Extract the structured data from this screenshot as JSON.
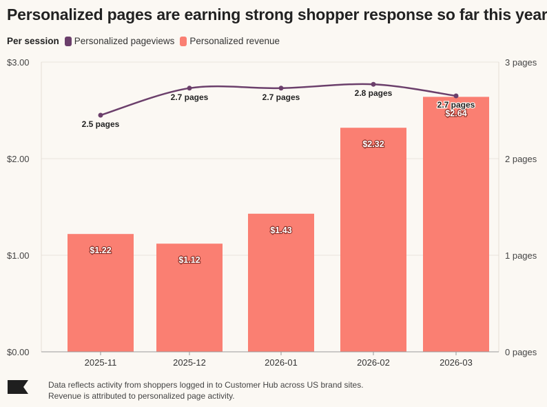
{
  "title": "Personalized pages are earning strong shopper response so far this year",
  "legend": {
    "title": "Per session",
    "items": [
      {
        "label": "Personalized pageviews",
        "color": "#6b3f6b"
      },
      {
        "label": "Personalized revenue",
        "color": "#fa7f72"
      }
    ]
  },
  "footer": {
    "line1": "Data reflects activity from shoppers logged in to Customer Hub across US brand sites.",
    "line2": "Revenue is attributed to personalized page activity."
  },
  "chart_data": {
    "type": "bar",
    "title": "Personalized pages are earning strong shopper response so far this year",
    "categories": [
      "2025-11",
      "2025-12",
      "2026-01",
      "2026-02",
      "2026-03"
    ],
    "series": [
      {
        "name": "Personalized revenue",
        "type": "bar",
        "axis": "left",
        "values": [
          1.22,
          1.12,
          1.43,
          2.32,
          2.64
        ],
        "labels": [
          "$1.22",
          "$1.12",
          "$1.43",
          "$2.32",
          "$2.64"
        ],
        "color": "#fa7f72"
      },
      {
        "name": "Personalized pageviews",
        "type": "line",
        "axis": "right",
        "values": [
          2.45,
          2.73,
          2.73,
          2.77,
          2.65
        ],
        "labels": [
          "2.5 pages",
          "2.7 pages",
          "2.7 pages",
          "2.8 pages",
          "2.7 pages"
        ],
        "color": "#6b3f6b"
      }
    ],
    "y_left": {
      "ylim": [
        0,
        3
      ],
      "ticks": [
        0,
        1,
        2,
        3
      ],
      "tick_labels": [
        "$0.00",
        "$1.00",
        "$2.00",
        "$3.00"
      ]
    },
    "y_right": {
      "ylim": [
        0,
        3
      ],
      "ticks": [
        0,
        1,
        2,
        3
      ],
      "tick_labels": [
        "0 pages",
        "1 pages",
        "2 pages",
        "3 pages"
      ]
    },
    "grid": true
  }
}
